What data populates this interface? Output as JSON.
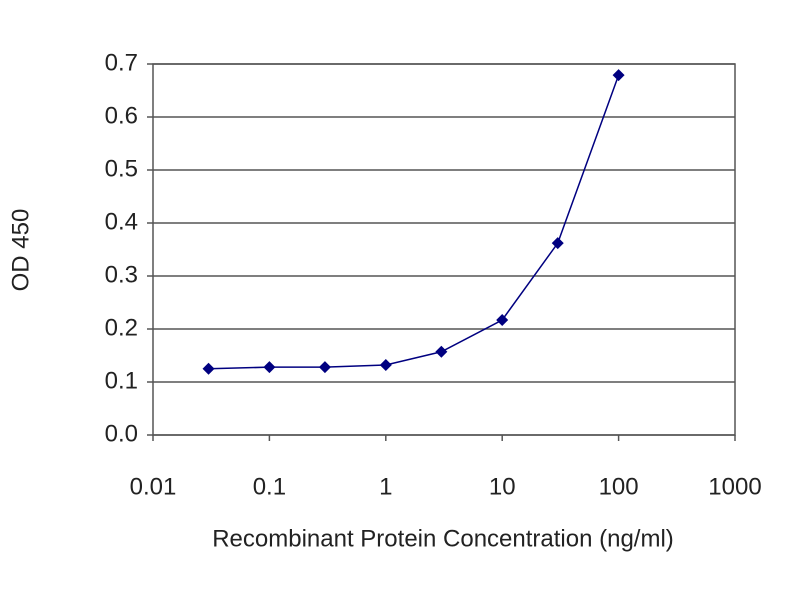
{
  "chart_data": {
    "type": "line",
    "x_label": "Recombinant Protein Concentration (ng/ml)",
    "y_label": "OD 450",
    "x": [
      0.03,
      0.1,
      0.3,
      1,
      3,
      10,
      30,
      100
    ],
    "series": [
      {
        "color": "#000080",
        "values": [
          0.125,
          0.128,
          0.128,
          0.132,
          0.157,
          0.217,
          0.362,
          0.679
        ]
      }
    ],
    "xlim": [
      0.01,
      1000
    ],
    "xticks": [
      0.01,
      0.1,
      1,
      10,
      100,
      1000
    ],
    "xscale": "log",
    "ylim": [
      0,
      0.7
    ],
    "yticks": [
      {
        "value": 0,
        "label": "0.0"
      },
      0.1,
      0.2,
      0.3,
      0.4,
      0.5,
      0.6,
      0.7
    ],
    "grid": true
  }
}
